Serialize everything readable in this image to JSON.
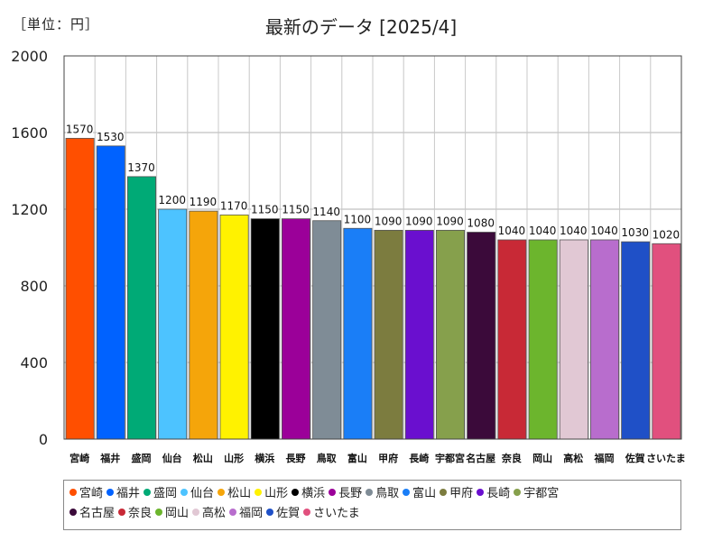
{
  "unit_label": "［単位：円］",
  "chart_data": {
    "type": "bar",
    "title": "最新のデータ [2025/4]",
    "ylabel": "",
    "xlabel": "",
    "ylim": [
      0,
      2000
    ],
    "yticks": [
      0,
      400,
      800,
      1200,
      1600,
      2000
    ],
    "grid": true,
    "legend_position": "bottom",
    "categories": [
      "宮崎",
      "福井",
      "盛岡",
      "仙台",
      "松山",
      "山形",
      "横浜",
      "長野",
      "鳥取",
      "富山",
      "甲府",
      "長崎",
      "宇都宮",
      "名古屋",
      "奈良",
      "岡山",
      "高松",
      "福岡",
      "佐賀",
      "さいたま"
    ],
    "values": [
      1570,
      1530,
      1370,
      1200,
      1190,
      1170,
      1150,
      1150,
      1140,
      1100,
      1090,
      1090,
      1090,
      1080,
      1040,
      1040,
      1040,
      1040,
      1030,
      1020
    ],
    "colors": [
      "#ff4f00",
      "#0062ff",
      "#00aa76",
      "#4dc3ff",
      "#f5a50a",
      "#fff200",
      "#000000",
      "#9b0099",
      "#7f8c96",
      "#1a7ef7",
      "#7c7c3f",
      "#6a0fcf",
      "#86a04c",
      "#3b0a3a",
      "#c82936",
      "#6cb52d",
      "#e1c8d4",
      "#b86dcd",
      "#1f50c7",
      "#e1507e"
    ]
  }
}
